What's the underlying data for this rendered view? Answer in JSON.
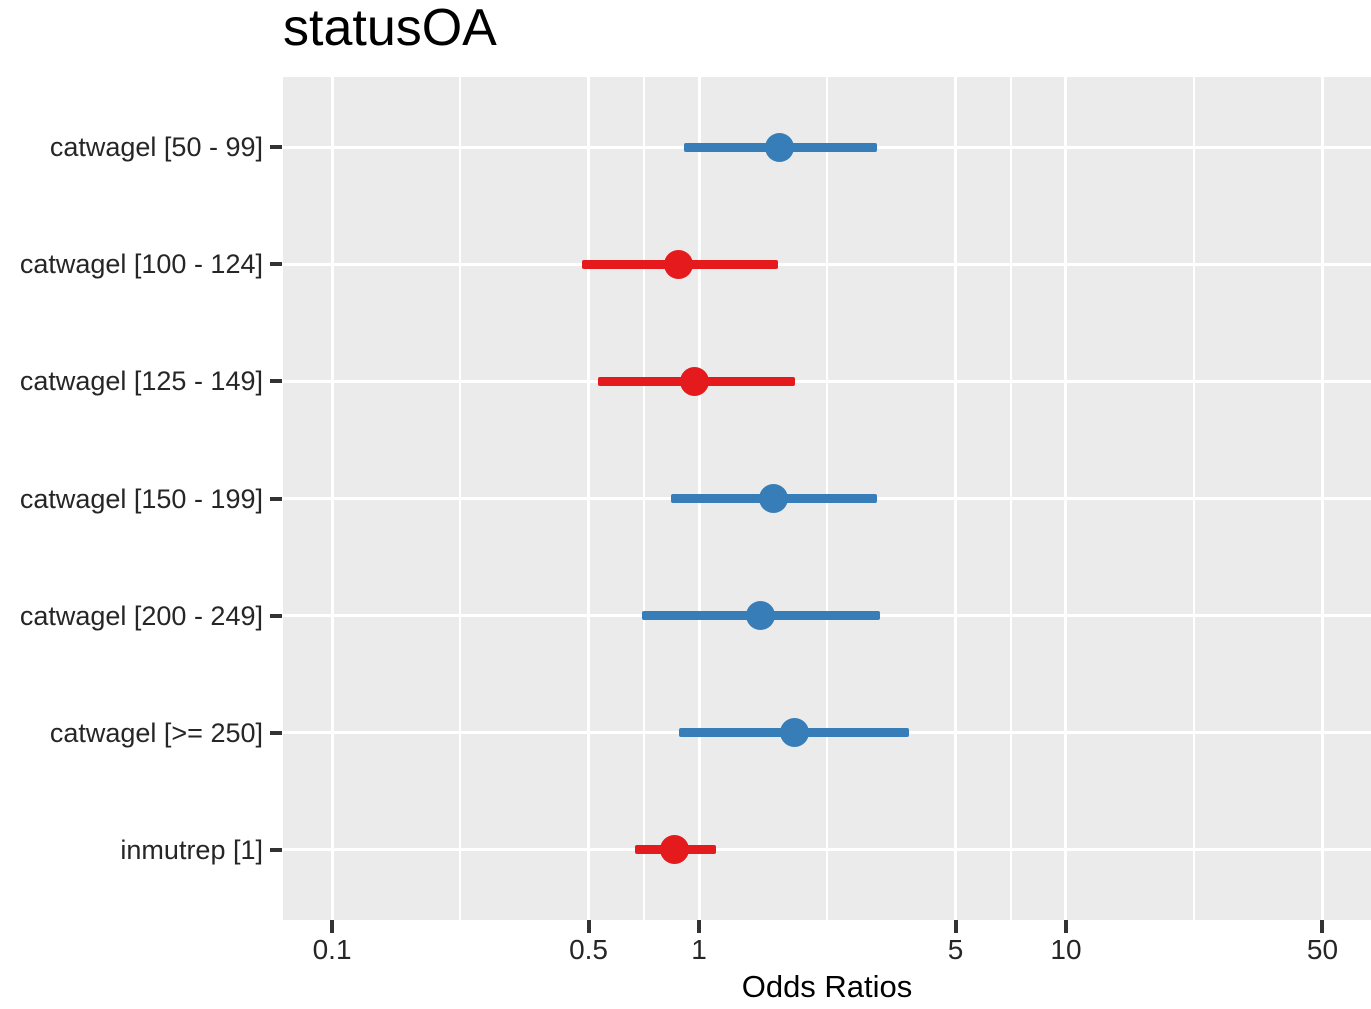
{
  "chart_data": {
    "type": "forest",
    "title": "statusOA",
    "xlabel": "Odds Ratios",
    "x_scale": "log10",
    "x_domain": [
      0.0735,
      67.8
    ],
    "x_ticks": [
      0.1,
      0.5,
      1,
      5,
      10,
      50
    ],
    "x_tick_labels": [
      "0.1",
      "0.5",
      "1",
      "5",
      "10",
      "50"
    ],
    "x_minor_breaks": [
      0.2236,
      0.7071,
      2.2361,
      7.0711,
      22.3607
    ],
    "grid": "on",
    "legend": "none",
    "reference_value": 1,
    "rows": [
      {
        "label": "catwagel [50 - 99]",
        "or": 1.66,
        "ci_low": 0.91,
        "ci_high": 3.05,
        "direction": "positive"
      },
      {
        "label": "catwagel [100 - 124]",
        "or": 0.88,
        "ci_low": 0.48,
        "ci_high": 1.64,
        "direction": "negative"
      },
      {
        "label": "catwagel [125 - 149]",
        "or": 0.97,
        "ci_low": 0.53,
        "ci_high": 1.83,
        "direction": "negative"
      },
      {
        "label": "catwagel [150 - 199]",
        "or": 1.6,
        "ci_low": 0.84,
        "ci_high": 3.05,
        "direction": "positive"
      },
      {
        "label": "catwagel [200 - 249]",
        "or": 1.47,
        "ci_low": 0.7,
        "ci_high": 3.11,
        "direction": "positive"
      },
      {
        "label": "catwagel [>= 250]",
        "or": 1.82,
        "ci_low": 0.88,
        "ci_high": 3.74,
        "direction": "positive"
      },
      {
        "label": "inmutrep [1]",
        "or": 0.86,
        "ci_low": 0.67,
        "ci_high": 1.11,
        "direction": "negative"
      }
    ],
    "colors": {
      "positive": "#377EB8",
      "negative": "#E41A1C",
      "panel_bg": "#EBEBEB",
      "gridline": "#FFFFFF",
      "tick_mark": "#333333",
      "axis_text": "#262626"
    }
  }
}
